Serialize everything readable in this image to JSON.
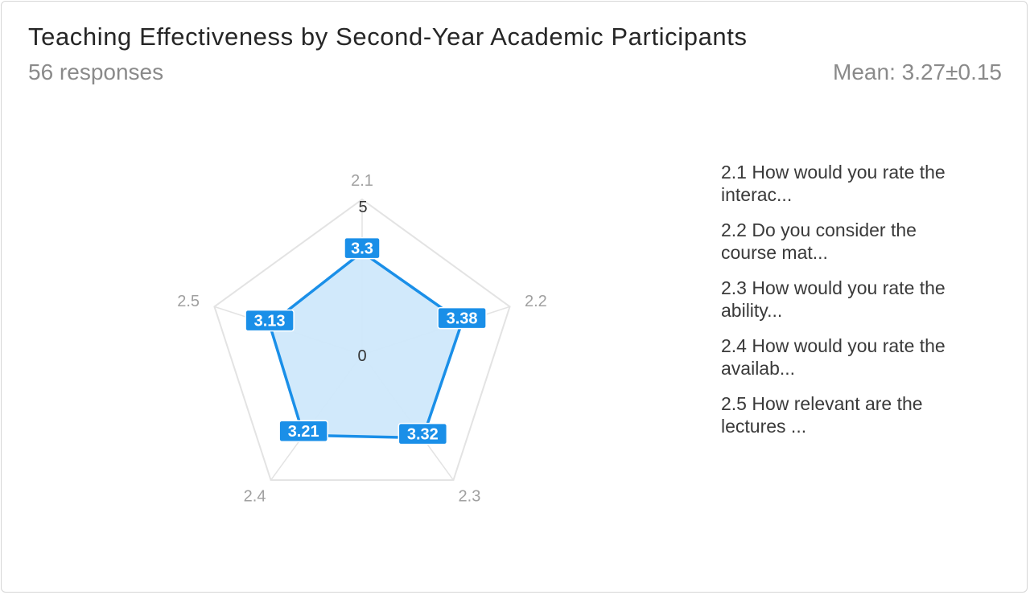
{
  "header": {
    "title": "Teaching Effectiveness by Second-Year Academic Participants",
    "responses": "56 responses",
    "mean": "Mean: 3.27±0.15"
  },
  "legend": {
    "items": [
      "2.1 How would you rate the interac...",
      "2.2 Do you consider the course mat...",
      "2.3 How would you rate the ability...",
      "2.4 How would you rate the availab...",
      "2.5 How relevant are the lectures ..."
    ]
  },
  "colors": {
    "series": "#1a8fe8",
    "fill": "#cfe8fb",
    "label_bg": "#1a8fe8",
    "grid": "#e3e3e3",
    "axis_label": "#a0a0a0"
  },
  "chart_data": {
    "type": "radar",
    "categories": [
      "2.1",
      "2.2",
      "2.3",
      "2.4",
      "2.5"
    ],
    "values": [
      3.3,
      3.38,
      3.32,
      3.21,
      3.13
    ],
    "value_labels": [
      "3.3",
      "3.38",
      "3.32",
      "3.21",
      "3.13"
    ],
    "rlim": [
      0,
      5
    ],
    "r_tick_labels": [
      "0",
      "5"
    ],
    "grid": true
  }
}
